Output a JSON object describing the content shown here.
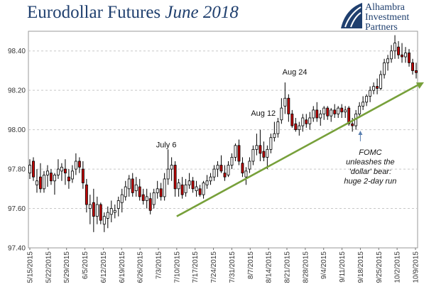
{
  "title": {
    "main": "Eurodollar Futures",
    "italic": "June 2018"
  },
  "logo": {
    "lines": [
      "Alhambra",
      "Investment",
      "Partners"
    ]
  },
  "colors": {
    "up": "#ffffff",
    "down": "#c00000",
    "wick": "#000000",
    "trend": "#77a03a",
    "grid": "#c8c8c8",
    "title": "#1f3f6e"
  },
  "chart_data": {
    "type": "candlestick",
    "title": "Eurodollar Futures June 2018",
    "ylim": [
      97.4,
      98.5
    ],
    "yticks": [
      "97.40",
      "97.60",
      "97.80",
      "98.00",
      "98.20",
      "98.40"
    ],
    "xtick_labels": [
      "5/15/2015",
      "5/22/2015",
      "5/29/2015",
      "6/5/2015",
      "6/12/2015",
      "6/19/2015",
      "6/26/2015",
      "7/3/2015",
      "7/10/2015",
      "7/17/2015",
      "7/24/2015",
      "7/31/2015",
      "8/7/2015",
      "8/14/2015",
      "8/21/2015",
      "8/28/2015",
      "9/4/2015",
      "9/11/2015",
      "9/18/2015",
      "9/25/2015",
      "10/2/2015",
      "10/9/2015"
    ],
    "grid": "horizontal dashed",
    "candles": [
      [
        97.78,
        97.85,
        97.75,
        97.82
      ],
      [
        97.84,
        97.86,
        97.74,
        97.76
      ],
      [
        97.72,
        97.8,
        97.68,
        97.74
      ],
      [
        97.76,
        97.83,
        97.68,
        97.7
      ],
      [
        97.7,
        97.79,
        97.68,
        97.77
      ],
      [
        97.77,
        97.82,
        97.71,
        97.79
      ],
      [
        97.78,
        97.8,
        97.72,
        97.74
      ],
      [
        97.74,
        97.78,
        97.67,
        97.77
      ],
      [
        97.77,
        97.85,
        97.75,
        97.8
      ],
      [
        97.79,
        97.83,
        97.74,
        97.81
      ],
      [
        97.8,
        97.85,
        97.72,
        97.78
      ],
      [
        97.76,
        97.8,
        97.7,
        97.74
      ],
      [
        97.75,
        97.82,
        97.73,
        97.79
      ],
      [
        97.8,
        97.88,
        97.77,
        97.84
      ],
      [
        97.84,
        97.86,
        97.78,
        97.81
      ],
      [
        97.8,
        97.84,
        97.7,
        97.73
      ],
      [
        97.72,
        97.75,
        97.58,
        97.62
      ],
      [
        97.6,
        97.67,
        97.52,
        97.62
      ],
      [
        97.63,
        97.7,
        97.48,
        97.56
      ],
      [
        97.56,
        97.66,
        97.52,
        97.62
      ],
      [
        97.62,
        97.63,
        97.52,
        97.54
      ],
      [
        97.52,
        97.58,
        97.48,
        97.56
      ],
      [
        97.55,
        97.61,
        97.5,
        97.58
      ],
      [
        97.57,
        97.64,
        97.53,
        97.6
      ],
      [
        97.58,
        97.62,
        97.55,
        97.59
      ],
      [
        97.6,
        97.66,
        97.56,
        97.64
      ],
      [
        97.63,
        97.7,
        97.58,
        97.67
      ],
      [
        97.66,
        97.74,
        97.64,
        97.71
      ],
      [
        97.7,
        97.77,
        97.66,
        97.75
      ],
      [
        97.75,
        97.78,
        97.66,
        97.68
      ],
      [
        97.69,
        97.76,
        97.66,
        97.72
      ],
      [
        97.71,
        97.75,
        97.64,
        97.66
      ],
      [
        97.67,
        97.7,
        97.62,
        97.64
      ],
      [
        97.64,
        97.7,
        97.6,
        97.66
      ],
      [
        97.65,
        97.68,
        97.57,
        97.59
      ],
      [
        97.62,
        97.7,
        97.6,
        97.68
      ],
      [
        97.68,
        97.74,
        97.65,
        97.7
      ],
      [
        97.7,
        97.73,
        97.64,
        97.66
      ],
      [
        97.66,
        97.78,
        97.64,
        97.75
      ],
      [
        97.75,
        97.9,
        97.72,
        97.8
      ],
      [
        97.8,
        97.86,
        97.74,
        97.82
      ],
      [
        97.82,
        97.84,
        97.66,
        97.7
      ],
      [
        97.7,
        97.75,
        97.66,
        97.73
      ],
      [
        97.72,
        97.76,
        97.65,
        97.67
      ],
      [
        97.68,
        97.75,
        97.66,
        97.72
      ],
      [
        97.72,
        97.78,
        97.7,
        97.74
      ],
      [
        97.74,
        97.76,
        97.68,
        97.7
      ],
      [
        97.69,
        97.74,
        97.66,
        97.71
      ],
      [
        97.7,
        97.72,
        97.66,
        97.67
      ],
      [
        97.67,
        97.74,
        97.65,
        97.73
      ],
      [
        97.72,
        97.77,
        97.7,
        97.74
      ],
      [
        97.74,
        97.78,
        97.72,
        97.76
      ],
      [
        97.76,
        97.82,
        97.74,
        97.8
      ],
      [
        97.8,
        97.84,
        97.76,
        97.82
      ],
      [
        97.82,
        97.87,
        97.78,
        97.79
      ],
      [
        97.78,
        97.82,
        97.74,
        97.76
      ],
      [
        97.77,
        97.84,
        97.76,
        97.82
      ],
      [
        97.82,
        97.88,
        97.8,
        97.86
      ],
      [
        97.86,
        97.93,
        97.84,
        97.92
      ],
      [
        97.92,
        97.95,
        97.82,
        97.84
      ],
      [
        97.83,
        97.86,
        97.76,
        97.78
      ],
      [
        97.76,
        97.81,
        97.72,
        97.79
      ],
      [
        97.8,
        97.86,
        97.78,
        97.84
      ],
      [
        97.84,
        97.92,
        97.82,
        97.9
      ],
      [
        97.9,
        97.98,
        97.87,
        97.92
      ],
      [
        97.92,
        98.0,
        97.84,
        97.88
      ],
      [
        97.89,
        97.94,
        97.84,
        97.86
      ],
      [
        97.86,
        97.92,
        97.8,
        97.9
      ],
      [
        97.9,
        97.98,
        97.88,
        97.96
      ],
      [
        97.96,
        98.04,
        97.94,
        97.98
      ],
      [
        97.98,
        98.06,
        97.96,
        98.04
      ],
      [
        98.05,
        98.16,
        98.03,
        98.11
      ],
      [
        98.12,
        98.24,
        98.08,
        98.16
      ],
      [
        98.16,
        98.18,
        98.04,
        98.08
      ],
      [
        98.08,
        98.1,
        98.01,
        98.02
      ],
      [
        98.03,
        98.06,
        97.99,
        98.0
      ],
      [
        98.0,
        98.04,
        97.97,
        98.02
      ],
      [
        98.02,
        98.08,
        97.99,
        98.06
      ],
      [
        98.05,
        98.08,
        98.01,
        98.03
      ],
      [
        98.03,
        98.09,
        98.0,
        98.06
      ],
      [
        98.06,
        98.12,
        98.04,
        98.1
      ],
      [
        98.1,
        98.14,
        98.04,
        98.06
      ],
      [
        98.06,
        98.1,
        98.02,
        98.08
      ],
      [
        98.08,
        98.12,
        98.05,
        98.11
      ],
      [
        98.11,
        98.12,
        98.05,
        98.07
      ],
      [
        98.07,
        98.11,
        98.04,
        98.1
      ],
      [
        98.1,
        98.13,
        98.06,
        98.08
      ],
      [
        98.08,
        98.12,
        98.06,
        98.11
      ],
      [
        98.11,
        98.13,
        98.06,
        98.09
      ],
      [
        98.09,
        98.12,
        98.06,
        98.1
      ],
      [
        98.11,
        98.12,
        98.02,
        98.03
      ],
      [
        98.03,
        98.06,
        97.99,
        98.02
      ],
      [
        98.02,
        98.1,
        98.0,
        98.08
      ],
      [
        98.08,
        98.14,
        98.06,
        98.12
      ],
      [
        98.12,
        98.17,
        98.1,
        98.14
      ],
      [
        98.14,
        98.18,
        98.12,
        98.17
      ],
      [
        98.17,
        98.22,
        98.14,
        98.2
      ],
      [
        98.2,
        98.24,
        98.18,
        98.22
      ],
      [
        98.22,
        98.26,
        98.18,
        98.21
      ],
      [
        98.21,
        98.3,
        98.2,
        98.28
      ],
      [
        98.28,
        98.36,
        98.26,
        98.34
      ],
      [
        98.34,
        98.38,
        98.3,
        98.36
      ],
      [
        98.36,
        98.43,
        98.34,
        98.4
      ],
      [
        98.4,
        98.48,
        98.36,
        98.44
      ],
      [
        98.42,
        98.45,
        98.36,
        98.38
      ],
      [
        98.38,
        98.44,
        98.34,
        98.37
      ],
      [
        98.37,
        98.42,
        98.34,
        98.39
      ],
      [
        98.39,
        98.41,
        98.32,
        98.34
      ],
      [
        98.34,
        98.36,
        98.28,
        98.3
      ],
      [
        98.3,
        98.34,
        98.26,
        98.29
      ]
    ],
    "trendline": {
      "start": [
        "7/10/2015",
        97.56
      ],
      "end": [
        "10/9/2015",
        98.23
      ]
    },
    "annotations": [
      {
        "text": "July 6",
        "x_date": "7/6/2015",
        "y": 97.91
      },
      {
        "text": "Aug 12",
        "x_date": "8/12/2015",
        "y": 98.07
      },
      {
        "text": "Aug 24",
        "x_date": "8/24/2015",
        "y": 98.28
      }
    ],
    "fomc_note": {
      "lines": [
        "FOMC",
        "unleashes the",
        "'dollar' bear:",
        "huge 2-day run"
      ],
      "x_date": "9/18/2015",
      "y": 97.97
    }
  }
}
